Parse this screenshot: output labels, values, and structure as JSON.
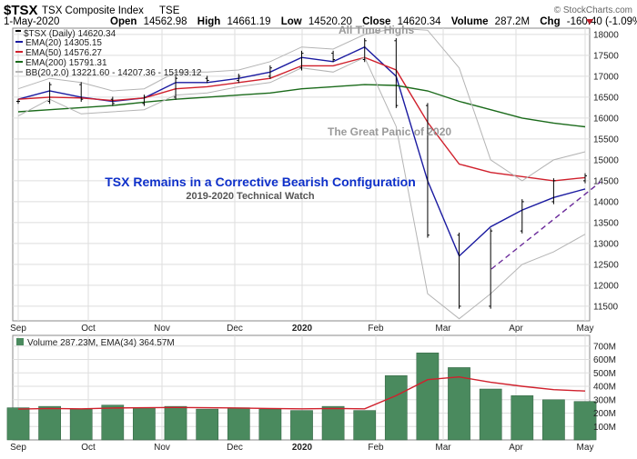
{
  "header": {
    "symbol": "$TSX",
    "name": "TSX Composite Index",
    "exchange": "TSE",
    "date": "1-May-2020",
    "open_label": "Open",
    "open": "14562.98",
    "high_label": "High",
    "high": "14661.19",
    "low_label": "Low",
    "low": "14520.20",
    "close_label": "Close",
    "close": "14620.34",
    "volume_label": "Volume",
    "volume": "287.2M",
    "chg_label": "Chg",
    "chg": "-160.40 (-1.09%)",
    "credit": "© StockCharts.com"
  },
  "legend": {
    "price": "$TSX (Daily) 14620.34",
    "ema20": "EMA(20) 14305.15",
    "ema50": "EMA(50) 14576.27",
    "ema200": "EMA(200) 15791.31",
    "bb": "BB(20,2.0) 13221.60 - 14207.36 - 15193.12"
  },
  "volume_legend": "Volume 287.23M, EMA(34) 364.57M",
  "annotations": {
    "ath": "All Time Highs",
    "panic": "The Great Panic of 2020",
    "title": "TSX Remains in a Corrective Bearish Configuration",
    "subtitle": "2019-2020 Technical Watch"
  },
  "colors": {
    "price": "#000000",
    "ema20": "#1a1aa0",
    "ema50": "#d0202c",
    "ema200": "#1a6a1a",
    "bb": "#b4b4b4",
    "trend": "#6a2a9a",
    "volume_bar": "#4a8a5e",
    "volume_ema": "#d0202c",
    "grid": "#dedede"
  },
  "chart_data": [
    {
      "type": "line",
      "title": "$TSX TSX Composite Index TSE",
      "x_axis_labels": [
        "Sep",
        "Oct",
        "Nov",
        "Dec",
        "2020",
        "Feb",
        "Mar",
        "Apr",
        "May"
      ],
      "y_ticks": [
        11500,
        12000,
        12500,
        13000,
        13500,
        14000,
        14500,
        15000,
        15500,
        16000,
        16500,
        17000,
        17500,
        18000
      ],
      "ylim": [
        11150,
        18150
      ],
      "x": [
        "Sep",
        "mid-Sep",
        "Oct",
        "mid-Oct",
        "Nov",
        "mid-Nov",
        "Dec",
        "mid-Dec",
        "2020",
        "mid-Jan",
        "Feb",
        "mid-Feb",
        "Mar",
        "mid-Mar",
        "late-Mar",
        "Apr",
        "mid-Apr",
        "late-Apr",
        "May"
      ],
      "series": [
        {
          "name": "$TSX (Daily)",
          "values": [
            16400,
            16800,
            16450,
            16350,
            16500,
            16950,
            16900,
            17000,
            17200,
            17550,
            17400,
            17850,
            16300,
            13200,
            11500,
            13300,
            14000,
            14500,
            14620
          ]
        },
        {
          "name": "EMA(20)",
          "values": [
            16450,
            16650,
            16500,
            16400,
            16480,
            16850,
            16850,
            16950,
            17100,
            17450,
            17350,
            17700,
            17000,
            14500,
            12700,
            13400,
            13800,
            14100,
            14305
          ]
        },
        {
          "name": "EMA(50)",
          "values": [
            16450,
            16500,
            16480,
            16420,
            16480,
            16700,
            16750,
            16850,
            16950,
            17250,
            17250,
            17450,
            17150,
            15900,
            14900,
            14700,
            14600,
            14500,
            14576
          ]
        },
        {
          "name": "EMA(200)",
          "values": [
            16150,
            16200,
            16250,
            16300,
            16380,
            16450,
            16500,
            16550,
            16600,
            16700,
            16750,
            16800,
            16780,
            16650,
            16400,
            16200,
            16000,
            15880,
            15791
          ]
        },
        {
          "name": "BB(20,2.0) upper",
          "values": [
            16700,
            16950,
            16850,
            16650,
            16700,
            17100,
            17100,
            17150,
            17350,
            17700,
            17650,
            18000,
            18150,
            18100,
            17200,
            15000,
            14500,
            15000,
            15193
          ]
        },
        {
          "name": "BB(20,2.0) lower",
          "values": [
            16050,
            16450,
            16100,
            16150,
            16200,
            16550,
            16600,
            16750,
            16850,
            17200,
            17100,
            17450,
            15800,
            11800,
            11200,
            11800,
            12500,
            12800,
            13222
          ]
        }
      ]
    },
    {
      "type": "bar",
      "title": "Volume 287.23M, EMA(34) 364.57M",
      "x_axis_labels": [
        "Sep",
        "Oct",
        "Nov",
        "Dec",
        "2020",
        "Feb",
        "Mar",
        "Apr",
        "May"
      ],
      "y_ticks_label": [
        "100M",
        "200M",
        "300M",
        "400M",
        "500M",
        "600M",
        "700M"
      ],
      "ylim": [
        0,
        780
      ],
      "x": [
        "Sep",
        "mid-Sep",
        "Oct",
        "mid-Oct",
        "Nov",
        "mid-Nov",
        "Dec",
        "mid-Dec",
        "2020",
        "mid-Jan",
        "Feb",
        "mid-Feb",
        "Mar",
        "mid-Mar",
        "late-Mar",
        "Apr",
        "mid-Apr",
        "late-Apr",
        "May"
      ],
      "series": [
        {
          "name": "Volume (M)",
          "values": [
            240,
            250,
            230,
            260,
            240,
            250,
            230,
            240,
            230,
            220,
            250,
            220,
            480,
            650,
            540,
            380,
            330,
            300,
            287
          ]
        },
        {
          "name": "EMA(34)",
          "values": [
            230,
            235,
            232,
            238,
            240,
            242,
            240,
            238,
            235,
            232,
            235,
            232,
            330,
            450,
            470,
            430,
            400,
            375,
            365
          ]
        }
      ]
    }
  ]
}
